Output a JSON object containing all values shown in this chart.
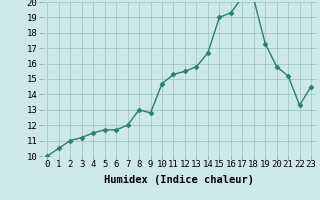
{
  "x": [
    0,
    1,
    2,
    3,
    4,
    5,
    6,
    7,
    8,
    9,
    10,
    11,
    12,
    13,
    14,
    15,
    16,
    17,
    18,
    19,
    20,
    21,
    22,
    23
  ],
  "y": [
    10.0,
    10.5,
    11.0,
    11.2,
    11.5,
    11.7,
    11.7,
    12.0,
    13.0,
    12.8,
    14.7,
    15.3,
    15.5,
    15.8,
    16.7,
    19.0,
    19.3,
    20.3,
    20.2,
    17.3,
    15.8,
    15.2,
    13.3,
    14.5
  ],
  "line_color": "#2e7d6e",
  "marker": "D",
  "marker_size": 2.5,
  "bg_color": "#cde8e8",
  "grid_color": "#a0c8c8",
  "xlabel": "Humidex (Indice chaleur)",
  "xlim": [
    -0.5,
    23.5
  ],
  "ylim": [
    10,
    20
  ],
  "yticks": [
    10,
    11,
    12,
    13,
    14,
    15,
    16,
    17,
    18,
    19,
    20
  ],
  "xtick_labels": [
    "0",
    "1",
    "2",
    "3",
    "4",
    "5",
    "6",
    "7",
    "8",
    "9",
    "10",
    "11",
    "12",
    "13",
    "14",
    "15",
    "16",
    "17",
    "18",
    "19",
    "20",
    "21",
    "22",
    "23"
  ],
  "tick_font_size": 6.5,
  "xlabel_font_size": 7.5
}
